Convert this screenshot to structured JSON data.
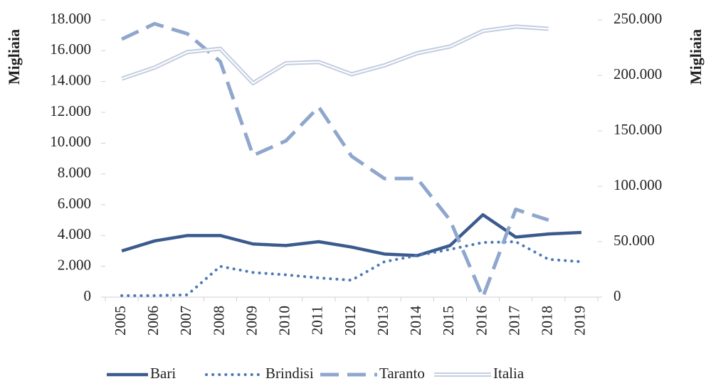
{
  "chart_data": {
    "type": "line",
    "x": [
      "2005",
      "2006",
      "2007",
      "2008",
      "2009",
      "2010",
      "2011",
      "2012",
      "2013",
      "2014",
      "2015",
      "2016",
      "2017",
      "2018",
      "2019"
    ],
    "ylabel": "Migliaia",
    "y2label": "Migliaia",
    "ylim": [
      0,
      18000
    ],
    "yticks": [
      0,
      {
        "value": 2000,
        "label": "2.000"
      },
      {
        "value": 4000,
        "label": "4.000"
      },
      {
        "value": 6000,
        "label": "6.000"
      },
      {
        "value": 8000,
        "label": "8.000"
      },
      {
        "value": 10000,
        "label": "10.000"
      },
      {
        "value": 12000,
        "label": "12.000"
      },
      {
        "value": 14000,
        "label": "14.000"
      },
      {
        "value": 16000,
        "label": "16.000"
      },
      {
        "value": 18000,
        "label": "18.000"
      }
    ],
    "y2lim": [
      0,
      250000
    ],
    "y2ticks": [
      0,
      {
        "value": 50000,
        "label": "50.000"
      },
      {
        "value": 100000,
        "label": "100.000"
      },
      {
        "value": 150000,
        "label": "150.000"
      },
      {
        "value": 200000,
        "label": "200.000"
      },
      {
        "value": 250000,
        "label": "250.000"
      }
    ],
    "legend": "bottom",
    "series": [
      {
        "name": "Bari",
        "color": "#3b5b8e",
        "style": "solid",
        "values": [
          3000,
          3650,
          4000,
          4000,
          3450,
          3350,
          3600,
          3250,
          2800,
          2700,
          3350,
          5350,
          3900,
          4100,
          4200
        ]
      },
      {
        "name": "Brindisi",
        "color": "#4a78b8",
        "style": "dotted",
        "values": [
          100,
          100,
          150,
          2000,
          1600,
          1450,
          1250,
          1100,
          2300,
          2700,
          3100,
          3550,
          3600,
          2450,
          2300
        ]
      },
      {
        "name": "Taranto",
        "color": "#8fa6cd",
        "style": "dashed",
        "values": [
          16750,
          17750,
          17100,
          15300,
          9200,
          10150,
          12350,
          9150,
          7700,
          7700,
          5000,
          0,
          5700,
          5000,
          null
        ]
      },
      {
        "name": "Italia",
        "color": "#c3cde0",
        "style": "double",
        "axis": "y2",
        "values": [
          197000,
          207000,
          221000,
          224000,
          193000,
          211000,
          212000,
          201000,
          209000,
          220000,
          226000,
          240000,
          244000,
          242000,
          null
        ]
      }
    ]
  }
}
